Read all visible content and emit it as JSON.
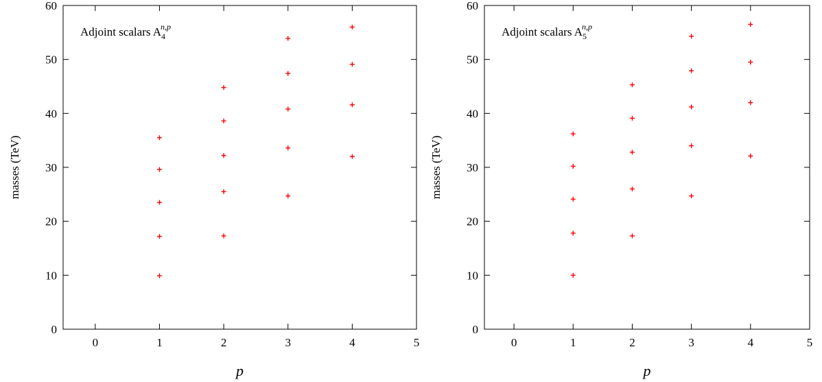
{
  "chart_data": [
    {
      "type": "scatter",
      "annotation": {
        "main": "Adjoint scalars A",
        "sub": "4",
        "sup": "n,p"
      },
      "xlabel": "p",
      "ylabel": "masses (TeV)",
      "xlim": [
        -0.5,
        5
      ],
      "ylim": [
        0,
        60
      ],
      "xticks": [
        0,
        1,
        2,
        3,
        4,
        5
      ],
      "yticks": [
        0,
        10,
        20,
        30,
        40,
        50,
        60
      ],
      "grid": false,
      "marker_color": "#ff0000",
      "points": [
        {
          "x": 1,
          "y": 9.9
        },
        {
          "x": 1,
          "y": 17.2
        },
        {
          "x": 1,
          "y": 23.5
        },
        {
          "x": 1,
          "y": 29.6
        },
        {
          "x": 1,
          "y": 35.5
        },
        {
          "x": 2,
          "y": 17.3
        },
        {
          "x": 2,
          "y": 25.5
        },
        {
          "x": 2,
          "y": 32.2
        },
        {
          "x": 2,
          "y": 38.6
        },
        {
          "x": 2,
          "y": 44.8
        },
        {
          "x": 3,
          "y": 24.7
        },
        {
          "x": 3,
          "y": 33.6
        },
        {
          "x": 3,
          "y": 40.8
        },
        {
          "x": 3,
          "y": 47.4
        },
        {
          "x": 3,
          "y": 53.9
        },
        {
          "x": 4,
          "y": 32.0
        },
        {
          "x": 4,
          "y": 41.6
        },
        {
          "x": 4,
          "y": 49.1
        },
        {
          "x": 4,
          "y": 56.0
        }
      ]
    },
    {
      "type": "scatter",
      "annotation": {
        "main": "Adjoint scalars A",
        "sub": "5",
        "sup": "n,p"
      },
      "xlabel": "p",
      "ylabel": "masses (TeV)",
      "xlim": [
        -0.5,
        5
      ],
      "ylim": [
        0,
        60
      ],
      "xticks": [
        0,
        1,
        2,
        3,
        4,
        5
      ],
      "yticks": [
        0,
        10,
        20,
        30,
        40,
        50,
        60
      ],
      "grid": false,
      "marker_color": "#ff0000",
      "points": [
        {
          "x": 1,
          "y": 10.0
        },
        {
          "x": 1,
          "y": 17.8
        },
        {
          "x": 1,
          "y": 24.1
        },
        {
          "x": 1,
          "y": 30.2
        },
        {
          "x": 1,
          "y": 36.2
        },
        {
          "x": 2,
          "y": 17.3
        },
        {
          "x": 2,
          "y": 26.0
        },
        {
          "x": 2,
          "y": 32.8
        },
        {
          "x": 2,
          "y": 39.1
        },
        {
          "x": 2,
          "y": 45.3
        },
        {
          "x": 3,
          "y": 24.7
        },
        {
          "x": 3,
          "y": 34.0
        },
        {
          "x": 3,
          "y": 41.2
        },
        {
          "x": 3,
          "y": 47.9
        },
        {
          "x": 3,
          "y": 54.3
        },
        {
          "x": 4,
          "y": 32.1
        },
        {
          "x": 4,
          "y": 42.0
        },
        {
          "x": 4,
          "y": 49.5
        },
        {
          "x": 4,
          "y": 56.5
        }
      ]
    }
  ]
}
